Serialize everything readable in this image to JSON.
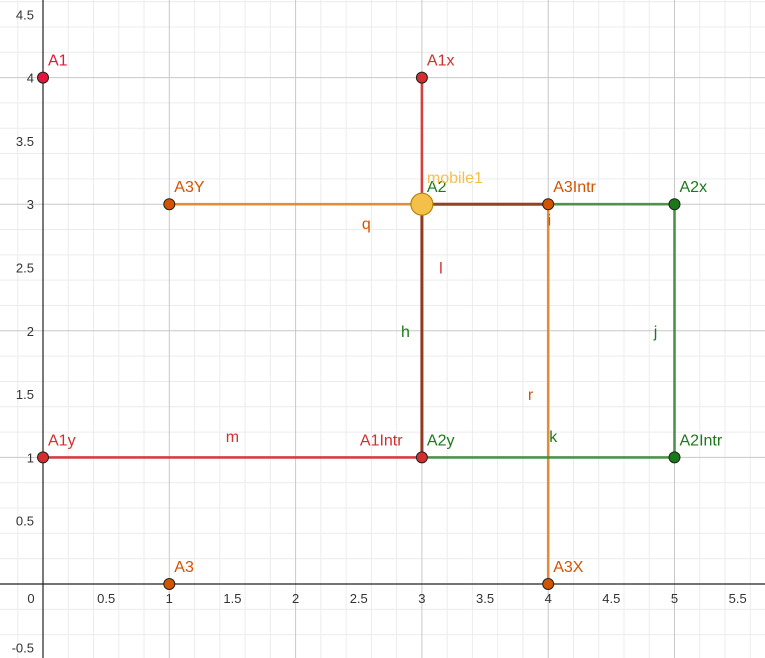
{
  "axes": {
    "x_ticks": [
      "0.5",
      "1",
      "1.5",
      "2",
      "2.5",
      "3",
      "3.5",
      "4",
      "4.5",
      "5",
      "5.5"
    ],
    "y_ticks": [
      "4.5",
      "4",
      "3.5",
      "3",
      "2.5",
      "2",
      "1.5",
      "1",
      "0.5",
      "-0.5"
    ],
    "origin_label": "0",
    "x_range": [
      -0.35,
      5.7
    ],
    "y_range": [
      -0.57,
      4.62
    ]
  },
  "colors": {
    "red": "#d32f2f",
    "crimson": "#e5163c",
    "orange": "#d35400",
    "orange_line": "#e0852a",
    "green": "#1a7a1a",
    "green_line": "#3c8c3c",
    "brown": "#8a3a1a",
    "yellow": "#f5c04a",
    "grid_major": "#c8c8c8",
    "grid_minor": "#ececec"
  },
  "points": [
    {
      "name": "A1",
      "x": 0,
      "y": 4,
      "color": "crimson",
      "label": "A1"
    },
    {
      "name": "A1x",
      "x": 3,
      "y": 4,
      "color": "red",
      "label": "A1x"
    },
    {
      "name": "A1y",
      "x": 0,
      "y": 1,
      "color": "red",
      "label": "A1y"
    },
    {
      "name": "A1Intr",
      "x": 3,
      "y": 1,
      "color": "red",
      "label": "A1Intr"
    },
    {
      "name": "A2",
      "x": 3,
      "y": 3,
      "color": "green",
      "label": "A2"
    },
    {
      "name": "A2x",
      "x": 5,
      "y": 3,
      "color": "green",
      "label": "A2x"
    },
    {
      "name": "A2y",
      "x": 3,
      "y": 1,
      "color": "green",
      "label": "A2y"
    },
    {
      "name": "A2Intr",
      "x": 5,
      "y": 1,
      "color": "green",
      "label": "A2Intr"
    },
    {
      "name": "A3",
      "x": 1,
      "y": 0,
      "color": "orange",
      "label": "A3"
    },
    {
      "name": "A3X",
      "x": 4,
      "y": 0,
      "color": "orange",
      "label": "A3X"
    },
    {
      "name": "A3Y",
      "x": 1,
      "y": 3,
      "color": "orange",
      "label": "A3Y"
    },
    {
      "name": "A3Intr",
      "x": 4,
      "y": 3,
      "color": "orange",
      "label": "A3Intr"
    },
    {
      "name": "mobile1",
      "x": 3,
      "y": 3,
      "color": "yellow",
      "label": "mobile1"
    }
  ],
  "segments": [
    {
      "name": "m",
      "from": [
        0,
        1
      ],
      "to": [
        3,
        1
      ],
      "color": "red",
      "label": "m"
    },
    {
      "name": "l",
      "from": [
        3,
        4
      ],
      "to": [
        3,
        1
      ],
      "color": "red",
      "label": "l"
    },
    {
      "name": "h",
      "from": [
        3,
        3
      ],
      "to": [
        3,
        1
      ],
      "color": "brown",
      "label": "h"
    },
    {
      "name": "q",
      "from": [
        1,
        3
      ],
      "to": [
        4,
        3
      ],
      "color": "orange_line",
      "label": "q"
    },
    {
      "name": "r",
      "from": [
        4,
        3
      ],
      "to": [
        4,
        0
      ],
      "color": "orange_line",
      "label": "r"
    },
    {
      "name": "g",
      "from": [
        3,
        3
      ],
      "to": [
        4,
        3
      ],
      "color": "brown",
      "label": ""
    },
    {
      "name": "i",
      "from": [
        4,
        3
      ],
      "to": [
        5,
        3
      ],
      "color": "green_line",
      "label": "i"
    },
    {
      "name": "j",
      "from": [
        5,
        3
      ],
      "to": [
        5,
        1
      ],
      "color": "green_line",
      "label": "j"
    },
    {
      "name": "k",
      "from": [
        3,
        1
      ],
      "to": [
        5,
        1
      ],
      "color": "green_line",
      "label": "k"
    }
  ]
}
